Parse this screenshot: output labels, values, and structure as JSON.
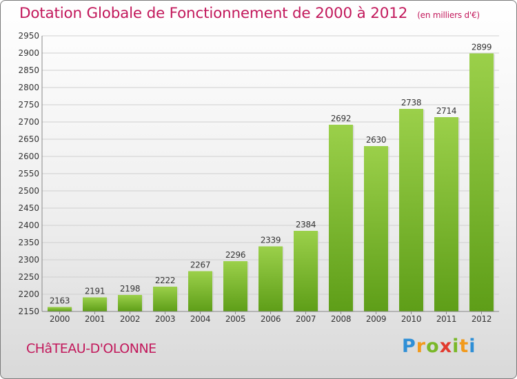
{
  "header": {
    "title": "Dotation Globale de Fonctionnement de 2000 à 2012",
    "unit_note": "(en milliers d'€)"
  },
  "footer": {
    "city": "CHâTEAU-D'OLONNE",
    "logo_text": "Proxiti"
  },
  "colors": {
    "title": "#c2185b",
    "bar_top": "#9bd04a",
    "bar_bottom": "#5e9e18",
    "grid": "#cfcfcf"
  },
  "chart_data": {
    "type": "bar",
    "title": "Dotation Globale de Fonctionnement de 2000 à 2012",
    "subtitle": "(en milliers d'€)",
    "xlabel": "",
    "ylabel": "",
    "categories": [
      "2000",
      "2001",
      "2002",
      "2003",
      "2004",
      "2005",
      "2006",
      "2007",
      "2008",
      "2009",
      "2010",
      "2011",
      "2012"
    ],
    "values": [
      2163,
      2191,
      2198,
      2222,
      2267,
      2296,
      2339,
      2384,
      2692,
      2630,
      2738,
      2714,
      2899
    ],
    "ylim": [
      2150,
      2950
    ],
    "yticks": [
      2150,
      2200,
      2250,
      2300,
      2350,
      2400,
      2450,
      2500,
      2550,
      2600,
      2650,
      2700,
      2750,
      2800,
      2850,
      2900,
      2950
    ],
    "grid": true,
    "data_labels": true,
    "legend": "none"
  }
}
